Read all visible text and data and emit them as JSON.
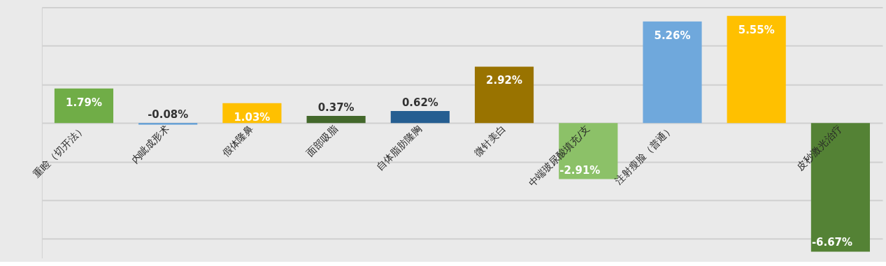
{
  "chart_data": {
    "type": "bar",
    "categories": [
      "重睑（切开法）",
      "内眦成形术",
      "假体隆鼻",
      "面部吸脂",
      "自体脂肪隆胸",
      "微针美白",
      "中端玻尿酸填充/支",
      "注射瘦脸（普通）",
      null,
      "皮秒激光治疗"
    ],
    "values": [
      1.79,
      -0.08,
      1.03,
      0.37,
      0.62,
      2.92,
      -2.91,
      5.26,
      5.55,
      -6.67
    ],
    "colors": [
      "#70ad47",
      "#5b9bd5",
      "#ffc000",
      "#43682b",
      "#255e91",
      "#997300",
      "#8cc168",
      "#6fa8dc",
      "#ffc000",
      "#548235"
    ],
    "value_labels": [
      "1.79%",
      "-0.08%",
      "1.03%",
      "0.37%",
      "0.62%",
      "2.92%",
      "-2.91%",
      "5.26%",
      "5.55%",
      "-6.67%"
    ],
    "ylim": [
      -7,
      6
    ],
    "yticks": [
      {
        "value": -6,
        "label": null
      },
      {
        "value": -4,
        "label": null
      },
      {
        "value": -2,
        "label": null
      },
      {
        "value": 0,
        "label": null
      },
      {
        "value": 2,
        "label": null
      },
      {
        "value": 4,
        "label": null
      },
      {
        "value": 6,
        "label": null
      }
    ],
    "grid": "y",
    "tick_labels": "x"
  }
}
